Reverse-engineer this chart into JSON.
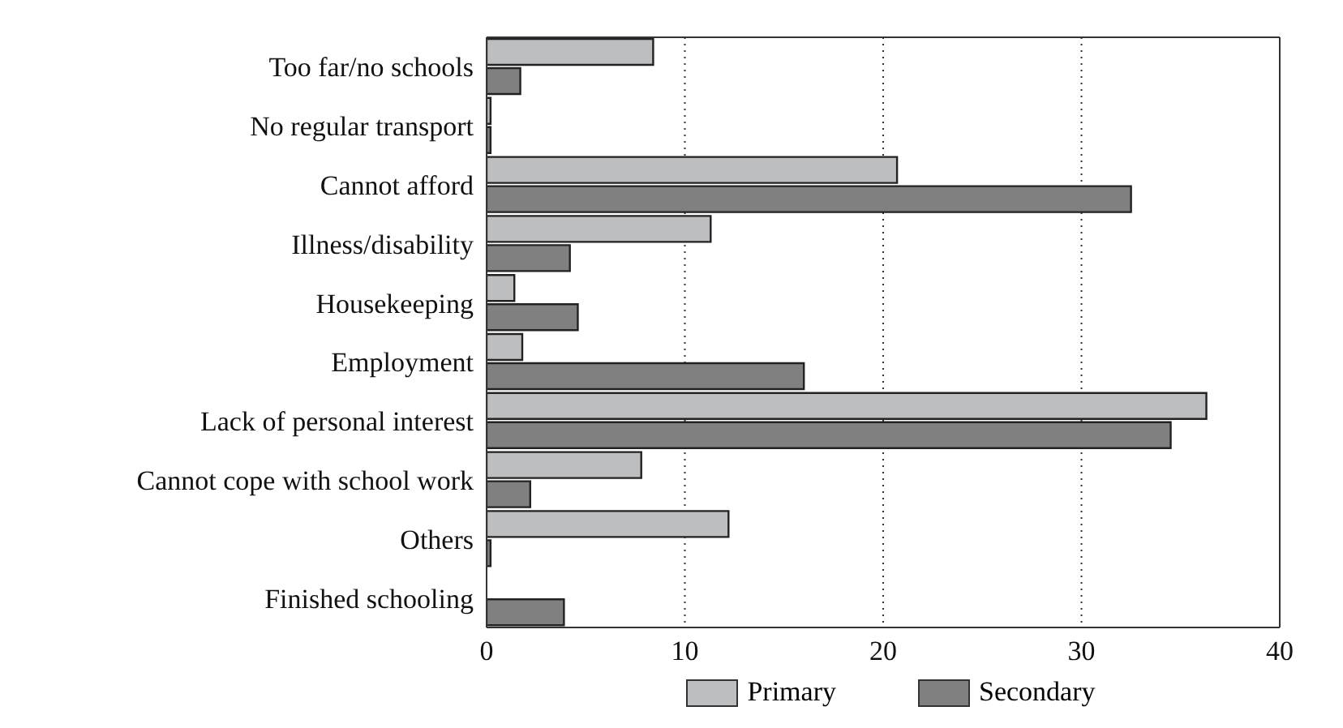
{
  "chart_data": {
    "type": "bar",
    "orientation": "horizontal",
    "categories": [
      "Too far/no schools",
      "No regular transport",
      "Cannot afford",
      "Illness/disability",
      "Housekeeping",
      "Employment",
      "Lack of personal interest",
      "Cannot cope with school work",
      "Others",
      "Finished schooling"
    ],
    "series": [
      {
        "name": "Primary",
        "color": "#bdbebf",
        "values": [
          8.4,
          0.2,
          20.7,
          11.3,
          1.4,
          1.8,
          36.3,
          7.8,
          12.2,
          null
        ]
      },
      {
        "name": "Secondary",
        "color": "#808080",
        "values": [
          1.7,
          0.2,
          32.5,
          4.2,
          4.6,
          16.0,
          34.5,
          2.2,
          0.2,
          3.9
        ]
      }
    ],
    "xlim": [
      0,
      40
    ],
    "xticks": [
      0,
      10,
      20,
      30,
      40
    ],
    "grid": "x",
    "legend": "bottom"
  }
}
